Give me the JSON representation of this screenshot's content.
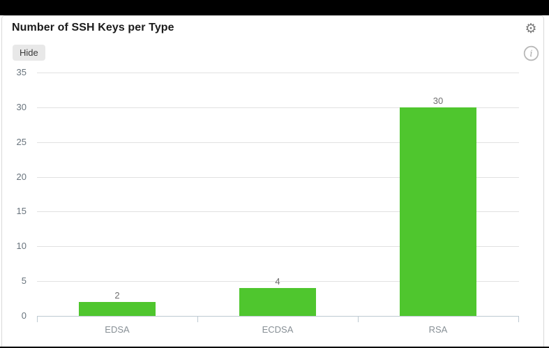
{
  "header": {
    "title": "Number of SSH Keys per Type",
    "hide_button_label": "Hide",
    "icons": [
      {
        "name": "gear-icon",
        "glyph": "⚙"
      },
      {
        "name": "info-icon",
        "glyph": "i"
      }
    ]
  },
  "chart_data": {
    "type": "bar",
    "title": "Number of SSH Keys per Type",
    "categories": [
      "EDSA",
      "ECDSA",
      "RSA"
    ],
    "values": [
      2,
      4,
      30
    ],
    "xlabel": "",
    "ylabel": "",
    "ylim": [
      0,
      35
    ],
    "yticks": [
      0,
      5,
      10,
      15,
      20,
      25,
      30,
      35
    ],
    "grid": true,
    "legend": false,
    "value_labels_shown": true
  },
  "colors": {
    "bar": "#4fc62e",
    "axis": "#bdc9d1",
    "gridline": "#e1e1e1",
    "ytick_label": "#68737c",
    "category_label": "#878f95",
    "value_label": "#6f6f6f",
    "title": "#1b1b1b",
    "page_background": "#000000",
    "card_background": "#ffffff",
    "card_border": "#d9d9d9",
    "hide_button_background": "#e8e8e8",
    "gear_icon": "#7a7a7a",
    "info_icon": "#b8b8b8"
  }
}
